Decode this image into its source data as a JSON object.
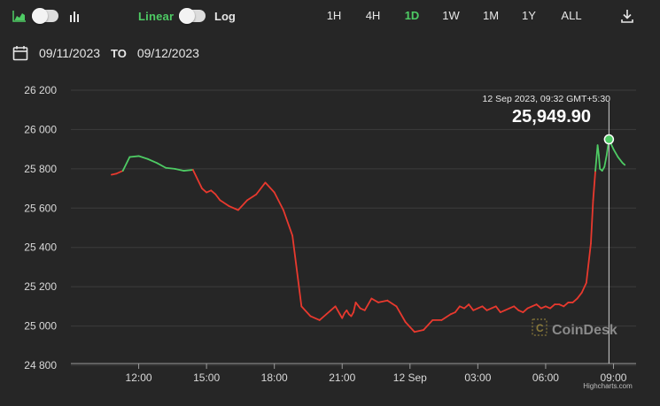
{
  "toolbar": {
    "chart_type_icon": "area-chart-icon",
    "bar_type_icon": "bar-chart-icon",
    "scale_linear_label": "Linear",
    "scale_log_label": "Log",
    "download_icon": "download-icon",
    "ranges": [
      "1H",
      "4H",
      "1D",
      "1W",
      "1M",
      "1Y",
      "ALL"
    ],
    "active_range": "1D"
  },
  "date_range": {
    "calendar_icon": "calendar-icon",
    "from": "09/11/2023",
    "to_label": "TO",
    "to": "09/12/2023"
  },
  "tooltip": {
    "time": "12 Sep 2023, 09:32 GMT+5:30",
    "price": "25,949.90"
  },
  "watermark": "CoinDesk",
  "credit": "Highcharts.com",
  "colors": {
    "up": "#4ecb64",
    "down": "#e8392e",
    "accent": "#4ecb64"
  },
  "chart_data": {
    "type": "line",
    "x_unit": "hours since 11 Sep 09:00 (local)",
    "ylim": [
      24800,
      26200
    ],
    "y_ticks": [
      24800,
      25000,
      25200,
      25400,
      25600,
      25800,
      26000,
      26200
    ],
    "y_tick_labels": [
      "24 800",
      "25 000",
      "25 200",
      "25 400",
      "25 600",
      "25 800",
      "26 000",
      "26 200"
    ],
    "x_ticks": [
      "12:00",
      "15:00",
      "18:00",
      "21:00",
      "12 Sep",
      "03:00",
      "06:00",
      "09:00"
    ],
    "grid": true,
    "series": [
      {
        "x": [
          1.8,
          2.0,
          2.3,
          2.6,
          3.0,
          3.4,
          3.8,
          4.2,
          4.6,
          5.0,
          5.4,
          5.8,
          6.0,
          6.2,
          6.4,
          6.6,
          7.0,
          7.4,
          7.8,
          8.2,
          8.6,
          9.0,
          9.4,
          9.8,
          10.2,
          10.6,
          11.0,
          11.3,
          11.5,
          11.7,
          11.9,
          12.0,
          12.1,
          12.2,
          12.3,
          12.4,
          12.5,
          12.6,
          12.8,
          13.0,
          13.3,
          13.6,
          14.0,
          14.4,
          14.8,
          15.2,
          15.6,
          16.0,
          16.4,
          16.8,
          17.0,
          17.2,
          17.4,
          17.6,
          17.8,
          18.0,
          18.2,
          18.4,
          18.6,
          18.8,
          19.0,
          19.2,
          19.4,
          19.6,
          19.8,
          20.0,
          20.2,
          20.4,
          20.6,
          20.8,
          21.0,
          21.2,
          21.4,
          21.6,
          21.8,
          22.0,
          22.2,
          22.4,
          22.6,
          22.8,
          23.0,
          23.1,
          23.2,
          23.3,
          23.35,
          23.4,
          23.5,
          23.6,
          23.7,
          23.8,
          24.0,
          24.2,
          24.4,
          24.5
        ],
        "y": [
          25770,
          25775,
          25790,
          25860,
          25865,
          25850,
          25830,
          25805,
          25800,
          25790,
          25795,
          25700,
          25680,
          25690,
          25670,
          25640,
          25610,
          25590,
          25640,
          25670,
          25730,
          25680,
          25590,
          25460,
          25100,
          25050,
          25030,
          25060,
          25080,
          25100,
          25060,
          25040,
          25065,
          25080,
          25060,
          25050,
          25070,
          25120,
          25090,
          25080,
          25140,
          25120,
          25130,
          25100,
          25020,
          24970,
          24980,
          25030,
          25030,
          25060,
          25070,
          25100,
          25090,
          25110,
          25080,
          25090,
          25100,
          25080,
          25090,
          25100,
          25070,
          25080,
          25090,
          25100,
          25080,
          25070,
          25090,
          25100,
          25110,
          25090,
          25100,
          25090,
          25110,
          25110,
          25100,
          25120,
          25120,
          25140,
          25170,
          25220,
          25420,
          25640,
          25790,
          25920,
          25870,
          25800,
          25790,
          25810,
          25870,
          25950,
          25900,
          25860,
          25830,
          25820
        ]
      }
    ],
    "highlight_point": {
      "x": 23.8,
      "y": 25949.9
    }
  }
}
